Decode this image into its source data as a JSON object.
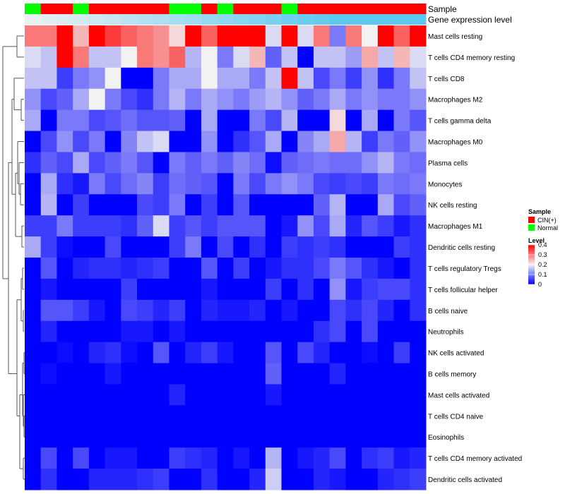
{
  "chart_data": {
    "type": "heatmap",
    "title": "",
    "annotation_tracks": [
      {
        "name": "Sample"
      },
      {
        "name": "Gene expression level"
      }
    ],
    "sample_groups": [
      "Normal",
      "CIN(+)",
      "CIN(+)",
      "Normal",
      "CIN(+)",
      "CIN(+)",
      "CIN(+)",
      "CIN(+)",
      "CIN(+)",
      "Normal",
      "Normal",
      "CIN(+)",
      "Normal",
      "CIN(+)",
      "CIN(+)",
      "CIN(+)",
      "Normal",
      "CIN(+)",
      "CIN(+)",
      "CIN(+)",
      "CIN(+)",
      "CIN(+)",
      "CIN(+)",
      "CIN(+)",
      "CIN(+)"
    ],
    "expression_level": [
      0.05,
      0.1,
      0.15,
      0.2,
      0.25,
      0.3,
      0.35,
      0.4,
      0.45,
      0.5,
      0.55,
      0.6,
      0.65,
      0.7,
      0.75,
      0.8,
      0.85,
      0.9,
      0.95,
      1.0,
      1.0,
      1.0,
      1.0,
      1.0,
      1.0
    ],
    "rows": [
      "Mast cells resting",
      "T cells CD4 memory resting",
      "T cells CD8",
      "Macrophages M2",
      "T cells gamma delta",
      "Macrophages M0",
      "Plasma cells",
      "Monocytes",
      "NK cells resting",
      "Macrophages M1",
      "Dendritic cells resting",
      "T cells regulatory  Tregs",
      "T cells follicular helper",
      "B cells naive",
      "Neutrophils",
      "NK cells activated",
      "B cells memory",
      "Mast cells activated",
      "T cells CD4 naive",
      "Eosinophils",
      "T cells CD4 memory activated",
      "Dendritic cells activated"
    ],
    "values": [
      [
        0.3,
        0.3,
        0.4,
        0.25,
        0.4,
        0.35,
        0.32,
        0.3,
        0.28,
        0.22,
        0.4,
        0.32,
        0.4,
        0.4,
        0.4,
        0.18,
        0.4,
        0.18,
        0.3,
        0.1,
        0.3,
        0.2,
        0.4,
        0.32,
        0.4
      ],
      [
        0.18,
        0.16,
        0.4,
        0.3,
        0.16,
        0.16,
        0.2,
        0.3,
        0.28,
        0.32,
        0.15,
        0.2,
        0.1,
        0.18,
        0.25,
        0.08,
        0.16,
        0.0,
        0.16,
        0.16,
        0.13,
        0.26,
        0.16,
        0.25,
        0.18
      ],
      [
        0.16,
        0.16,
        0.05,
        0.1,
        0.12,
        0.2,
        0.0,
        0.0,
        0.1,
        0.14,
        0.14,
        0.2,
        0.14,
        0.14,
        0.1,
        0.16,
        0.4,
        0.16,
        0.06,
        0.1,
        0.05,
        0.12,
        0.04,
        0.1,
        0.16
      ],
      [
        0.12,
        0.06,
        0.08,
        0.14,
        0.2,
        0.1,
        0.06,
        0.04,
        0.1,
        0.15,
        0.1,
        0.14,
        0.12,
        0.1,
        0.13,
        0.15,
        0.12,
        0.08,
        0.1,
        0.14,
        0.1,
        0.12,
        0.1,
        0.1,
        0.12
      ],
      [
        0.14,
        0.0,
        0.1,
        0.1,
        0.06,
        0.07,
        0.09,
        0.07,
        0.07,
        0.08,
        0.0,
        0.14,
        0.0,
        0.0,
        0.1,
        0.06,
        0.15,
        0.0,
        0.0,
        0.22,
        0.0,
        0.14,
        0.0,
        0.1,
        0.07
      ],
      [
        0.0,
        0.06,
        0.12,
        0.06,
        0.1,
        0.0,
        0.11,
        0.16,
        0.18,
        0.0,
        0.0,
        0.12,
        0.0,
        0.04,
        0.07,
        0.14,
        0.0,
        0.11,
        0.14,
        0.26,
        0.15,
        0.05,
        0.1,
        0.08,
        0.12
      ],
      [
        0.04,
        0.08,
        0.06,
        0.14,
        0.06,
        0.08,
        0.1,
        0.07,
        0.0,
        0.1,
        0.08,
        0.1,
        0.08,
        0.11,
        0.09,
        0.01,
        0.08,
        0.09,
        0.1,
        0.09,
        0.09,
        0.12,
        0.15,
        0.1,
        0.09
      ],
      [
        0.0,
        0.14,
        0.04,
        0.02,
        0.1,
        0.06,
        0.09,
        0.11,
        0.05,
        0.09,
        0.08,
        0.07,
        0.0,
        0.1,
        0.06,
        0.1,
        0.12,
        0.1,
        0.06,
        0.05,
        0.06,
        0.05,
        0.1,
        0.09,
        0.1
      ],
      [
        0.0,
        0.15,
        0.0,
        0.05,
        0.0,
        0.0,
        0.0,
        0.06,
        0.05,
        0.1,
        0.0,
        0.05,
        0.0,
        0.07,
        0.0,
        0.0,
        0.0,
        0.0,
        0.08,
        0.15,
        0.0,
        0.0,
        0.14,
        0.06,
        0.08
      ],
      [
        0.05,
        0.05,
        0.1,
        0.05,
        0.05,
        0.05,
        0.04,
        0.08,
        0.18,
        0.05,
        0.07,
        0.05,
        0.07,
        0.07,
        0.07,
        0.0,
        0.02,
        0.12,
        0.06,
        0.14,
        0.03,
        0.07,
        0.05,
        0.02,
        0.04
      ],
      [
        0.14,
        0.05,
        0.01,
        0.0,
        0.0,
        0.06,
        0.0,
        0.0,
        0.0,
        0.05,
        0.1,
        0.0,
        0.06,
        0.0,
        0.04,
        0.0,
        0.05,
        0.04,
        0.05,
        0.04,
        0.0,
        0.0,
        0.0,
        0.05,
        0.04
      ],
      [
        0.0,
        0.07,
        0.0,
        0.03,
        0.04,
        0.04,
        0.03,
        0.04,
        0.05,
        0.0,
        0.0,
        0.07,
        0.0,
        0.05,
        0.0,
        0.02,
        0.04,
        0.04,
        0.06,
        0.1,
        0.07,
        0.04,
        0.02,
        0.0,
        0.04
      ],
      [
        0.0,
        0.02,
        0.0,
        0.0,
        0.0,
        0.0,
        0.05,
        0.0,
        0.0,
        0.0,
        0.0,
        0.02,
        0.0,
        0.0,
        0.0,
        0.05,
        0.0,
        0.04,
        0.0,
        0.12,
        0.02,
        0.05,
        0.06,
        0.06,
        0.04
      ],
      [
        0.0,
        0.07,
        0.07,
        0.05,
        0.02,
        0.0,
        0.06,
        0.05,
        0.03,
        0.05,
        0.0,
        0.03,
        0.02,
        0.02,
        0.03,
        0.0,
        0.02,
        0.0,
        0.0,
        0.06,
        0.04,
        0.06,
        0.03,
        0.0,
        0.04
      ],
      [
        0.0,
        0.03,
        0.0,
        0.0,
        0.0,
        0.0,
        0.02,
        0.02,
        0.0,
        0.02,
        0.0,
        0.0,
        0.0,
        0.0,
        0.0,
        0.0,
        0.0,
        0.0,
        0.04,
        0.06,
        0.0,
        0.06,
        0.0,
        0.0,
        0.0
      ],
      [
        0.0,
        0.0,
        0.01,
        0.0,
        0.03,
        0.04,
        0.01,
        0.0,
        0.07,
        0.0,
        0.03,
        0.05,
        0.02,
        0.0,
        0.0,
        0.07,
        0.0,
        0.06,
        0.03,
        0.0,
        0.0,
        0.01,
        0.0,
        0.05,
        0.0
      ],
      [
        0.0,
        0.01,
        0.0,
        0.0,
        0.0,
        0.02,
        0.0,
        0.0,
        0.0,
        0.0,
        0.0,
        0.0,
        0.0,
        0.0,
        0.0,
        0.08,
        0.0,
        0.0,
        0.0,
        0.03,
        0.0,
        0.0,
        0.0,
        0.0,
        0.0
      ],
      [
        0.0,
        0.0,
        0.0,
        0.0,
        0.0,
        0.0,
        0.0,
        0.0,
        0.0,
        0.03,
        0.0,
        0.0,
        0.0,
        0.0,
        0.0,
        0.02,
        0.0,
        0.0,
        0.0,
        0.0,
        0.0,
        0.0,
        0.0,
        0.0,
        0.0
      ],
      [
        0.0,
        0.0,
        0.0,
        0.0,
        0.0,
        0.0,
        0.0,
        0.0,
        0.0,
        0.0,
        0.0,
        0.0,
        0.0,
        0.0,
        0.0,
        0.0,
        0.0,
        0.0,
        0.0,
        0.0,
        0.0,
        0.0,
        0.0,
        0.0,
        0.0
      ],
      [
        0.0,
        0.0,
        0.0,
        0.0,
        0.0,
        0.0,
        0.0,
        0.0,
        0.0,
        0.0,
        0.0,
        0.0,
        0.0,
        0.0,
        0.0,
        0.0,
        0.0,
        0.0,
        0.0,
        0.0,
        0.0,
        0.0,
        0.0,
        0.0,
        0.0
      ],
      [
        0.0,
        0.06,
        0.0,
        0.06,
        0.0,
        0.02,
        0.02,
        0.0,
        0.0,
        0.05,
        0.04,
        0.03,
        0.0,
        0.02,
        0.0,
        0.15,
        0.0,
        0.02,
        0.03,
        0.06,
        0.0,
        0.04,
        0.05,
        0.02,
        0.03
      ],
      [
        0.0,
        0.04,
        0.0,
        0.0,
        0.03,
        0.03,
        0.03,
        0.04,
        0.05,
        0.0,
        0.0,
        0.04,
        0.0,
        0.0,
        0.03,
        0.17,
        0.0,
        0.0,
        0.03,
        0.02,
        0.0,
        0.0,
        0.03,
        0.04,
        0.05
      ]
    ],
    "colorscale": {
      "min": 0,
      "max": 0.4,
      "colors": [
        "#0000ff",
        "#f2f2f2",
        "#ff0000"
      ]
    },
    "legend": {
      "sample_title": "Sample",
      "sample_entries": [
        {
          "label": "CIN(+)",
          "color": "#ff0000"
        },
        {
          "label": "Normal",
          "color": "#00ff00"
        }
      ],
      "level_title": "Level",
      "level_ticks": [
        0.4,
        0.3,
        0.2,
        0.1,
        0
      ]
    },
    "expression_colors": {
      "low": "#f2f2f2",
      "high": "#5bc8f0"
    }
  }
}
